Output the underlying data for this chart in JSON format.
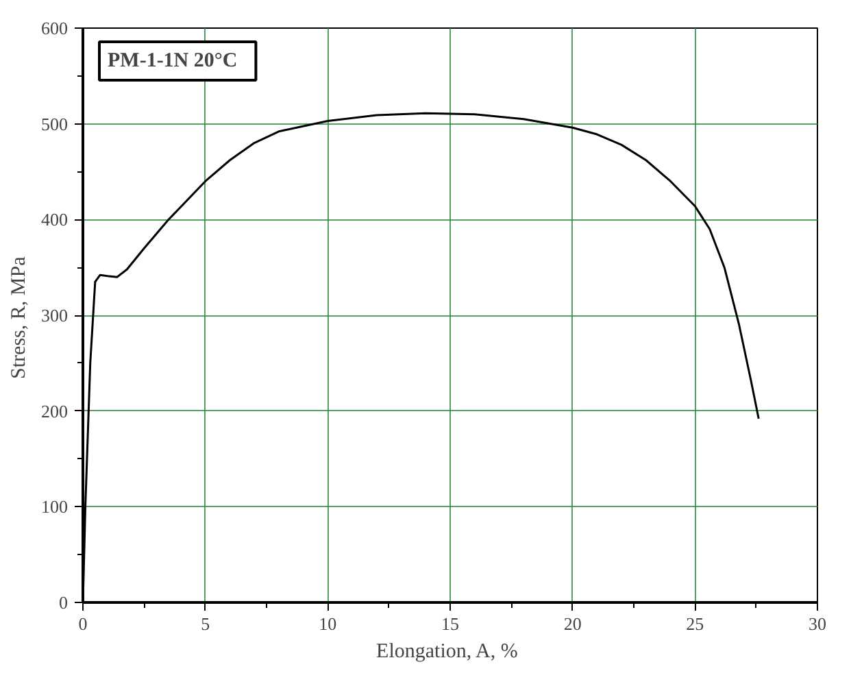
{
  "chart_data": {
    "type": "line",
    "xlabel": "Elongation,  A, %",
    "ylabel": "Stress,  R, MPa",
    "annotations": [
      "PM-1-1N   20°C"
    ],
    "x": [
      0,
      0.1,
      0.3,
      0.5,
      0.7,
      1.0,
      1.4,
      1.8,
      2.5,
      3.5,
      5,
      6,
      7,
      8,
      10,
      12,
      14,
      16,
      18,
      20,
      21,
      22,
      23,
      24,
      25,
      25.6,
      26.2,
      26.8,
      27.3,
      27.6
    ],
    "series": [
      {
        "color": "#000000",
        "values": [
          0,
          100,
          250,
          335,
          342,
          341,
          340,
          348,
          370,
          400,
          440,
          462,
          480,
          492,
          503,
          509,
          511,
          510,
          505,
          496,
          489,
          478,
          462,
          440,
          414,
          390,
          350,
          290,
          230,
          192
        ]
      }
    ],
    "xlim": [
      0,
      30
    ],
    "xticks": [
      0,
      5,
      10,
      15,
      20,
      25,
      30
    ],
    "ylim": [
      0,
      600
    ],
    "yticks": [
      0,
      100,
      200,
      300,
      400,
      500,
      600
    ],
    "grid": true,
    "marker": "none",
    "line_style": "solid"
  }
}
